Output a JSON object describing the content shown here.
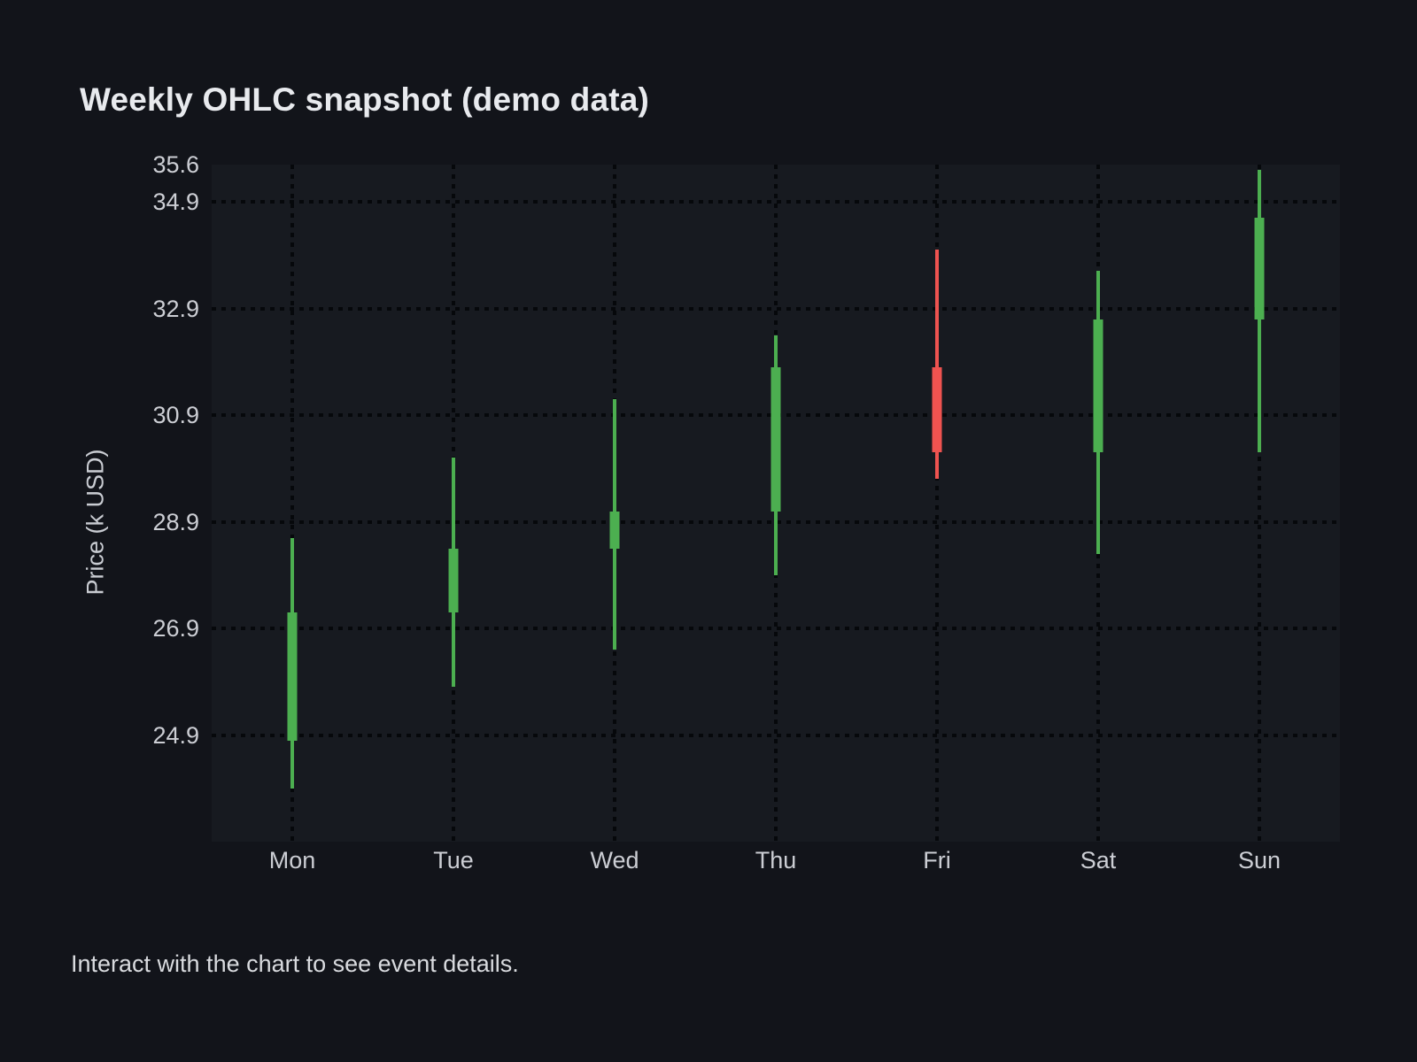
{
  "page": {
    "footer": "Interact with the chart to see event details."
  },
  "chart_data": {
    "type": "candlestick",
    "title": "Weekly OHLC snapshot (demo data)",
    "xlabel": "",
    "ylabel": "Price (k USD)",
    "x_categories": [
      "Mon",
      "Tue",
      "Wed",
      "Thu",
      "Fri",
      "Sat",
      "Sun"
    ],
    "y_range": [
      22.9,
      35.6
    ],
    "y_tick_labels": [
      "35.6",
      "34.9",
      "32.9",
      "30.9",
      "28.9",
      "26.9",
      "24.9"
    ],
    "y_tick_values": [
      35.6,
      34.9,
      32.9,
      30.9,
      28.9,
      26.9,
      24.9
    ],
    "gridline_values": [
      34.9,
      32.9,
      30.9,
      28.9,
      26.9,
      24.9
    ],
    "grid_style": "dotted",
    "legend": "none",
    "series": [
      {
        "name": "Weekly OHLC",
        "points": [
          {
            "day": "Mon",
            "open": 24.8,
            "high": 28.6,
            "low": 23.9,
            "close": 27.2,
            "direction": "up"
          },
          {
            "day": "Tue",
            "open": 27.2,
            "high": 30.1,
            "low": 25.8,
            "close": 28.4,
            "direction": "up"
          },
          {
            "day": "Wed",
            "open": 28.4,
            "high": 31.2,
            "low": 26.5,
            "close": 29.1,
            "direction": "up"
          },
          {
            "day": "Thu",
            "open": 29.1,
            "high": 32.4,
            "low": 27.9,
            "close": 31.8,
            "direction": "up"
          },
          {
            "day": "Fri",
            "open": 31.8,
            "high": 34.0,
            "low": 29.7,
            "close": 30.2,
            "direction": "down"
          },
          {
            "day": "Sat",
            "open": 30.2,
            "high": 33.6,
            "low": 28.3,
            "close": 32.7,
            "direction": "up"
          },
          {
            "day": "Sun",
            "open": 32.7,
            "high": 35.5,
            "low": 30.2,
            "close": 34.6,
            "direction": "up"
          }
        ]
      }
    ],
    "colors": {
      "up": "#4caf50",
      "down": "#ef5350",
      "background": "#12141a",
      "plot_background": "#171a20",
      "text": "#ccced4"
    }
  }
}
